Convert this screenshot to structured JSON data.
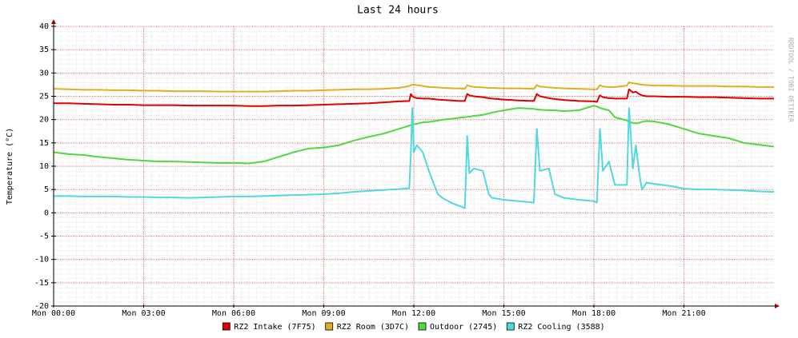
{
  "chart_data": {
    "type": "line",
    "title": "Last 24 hours",
    "y_label": "Temperature (°C)",
    "watermark": "RRDTOOL / TOBI OETIKER",
    "xlim": [
      0,
      24
    ],
    "xticks": [
      {
        "value": 0,
        "label": "Mon 00:00"
      },
      {
        "value": 3,
        "label": "Mon 03:00"
      },
      {
        "value": 6,
        "label": "Mon 06:00"
      },
      {
        "value": 9,
        "label": "Mon 09:00"
      },
      {
        "value": 12,
        "label": "Mon 12:00"
      },
      {
        "value": 15,
        "label": "Mon 15:00"
      },
      {
        "value": 18,
        "label": "Mon 18:00"
      },
      {
        "value": 21,
        "label": "Mon 21:00"
      }
    ],
    "ylim": [
      -20,
      40
    ],
    "yticks": [
      -20,
      -15,
      -10,
      -5,
      0,
      5,
      10,
      15,
      20,
      25,
      30,
      35,
      40
    ],
    "grid": true,
    "x": [
      0,
      0.5,
      1,
      1.5,
      2,
      2.5,
      3,
      3.5,
      4,
      4.5,
      5,
      5.5,
      6,
      6.5,
      7,
      7.5,
      8,
      8.5,
      9,
      9.5,
      10,
      10.5,
      11,
      11.5,
      11.85,
      11.9,
      11.95,
      12,
      12.1,
      12.3,
      12.5,
      12.8,
      13,
      13.3,
      13.5,
      13.7,
      13.78,
      13.85,
      14,
      14.3,
      14.5,
      14.6,
      15,
      15.5,
      16,
      16.1,
      16.2,
      16.5,
      16.7,
      17,
      17.5,
      18,
      18.1,
      18.2,
      18.3,
      18.5,
      18.7,
      19,
      19.1,
      19.17,
      19.3,
      19.4,
      19.5,
      19.6,
      19.75,
      20,
      20.5,
      21,
      21.5,
      22,
      22.5,
      23,
      23.5,
      24
    ],
    "series": [
      {
        "name": "RZ2 Intake (7F75)",
        "color": "#e00000",
        "values": [
          23.5,
          23.5,
          23.4,
          23.3,
          23.2,
          23.2,
          23.1,
          23.1,
          23.1,
          23,
          23,
          23,
          23,
          22.9,
          22.9,
          23,
          23,
          23.1,
          23.2,
          23.3,
          23.4,
          23.5,
          23.7,
          23.9,
          24,
          25.5,
          25,
          24.8,
          24.6,
          24.5,
          24.5,
          24.3,
          24.2,
          24.1,
          24,
          24,
          25.5,
          25.2,
          25,
          24.8,
          24.6,
          24.5,
          24.3,
          24.1,
          24,
          25.5,
          25,
          24.6,
          24.4,
          24.2,
          24,
          23.9,
          23.8,
          25.2,
          24.8,
          24.6,
          24.5,
          24.5,
          24.5,
          26.5,
          25.8,
          26,
          25.5,
          25.2,
          25,
          25,
          24.9,
          24.9,
          24.8,
          24.8,
          24.7,
          24.6,
          24.5,
          24.5
        ]
      },
      {
        "name": "RZ2 Room (3D7C)",
        "color": "#e0b020",
        "values": [
          26.6,
          26.5,
          26.4,
          26.4,
          26.3,
          26.3,
          26.2,
          26.2,
          26.1,
          26.1,
          26.1,
          26,
          26,
          26,
          26,
          26.1,
          26.2,
          26.2,
          26.3,
          26.4,
          26.5,
          26.5,
          26.6,
          26.8,
          27.2,
          27.4,
          27.5,
          27.5,
          27.4,
          27.2,
          27,
          26.9,
          26.8,
          26.7,
          26.7,
          26.6,
          27.4,
          27.2,
          27,
          26.9,
          26.8,
          26.8,
          26.7,
          26.7,
          26.6,
          27.4,
          27.1,
          26.9,
          26.8,
          26.7,
          26.6,
          26.5,
          26.5,
          27.4,
          27.1,
          27,
          27,
          27.2,
          27.3,
          28,
          27.8,
          27.7,
          27.6,
          27.5,
          27.4,
          27.3,
          27.3,
          27.2,
          27.2,
          27.2,
          27.1,
          27.1,
          27,
          27
        ]
      },
      {
        "name": "Outdoor (2745)",
        "color": "#50d840",
        "values": [
          13,
          12.6,
          12.4,
          12,
          11.7,
          11.4,
          11.2,
          11,
          11,
          10.9,
          10.8,
          10.7,
          10.7,
          10.6,
          11,
          12,
          13,
          13.8,
          14,
          14.5,
          15.5,
          16.3,
          17,
          18,
          18.7,
          18.8,
          18.9,
          19,
          19.1,
          19.4,
          19.5,
          19.8,
          20,
          20.2,
          20.4,
          20.5,
          20.6,
          20.6,
          20.8,
          21,
          21.3,
          21.5,
          22,
          22.5,
          22.3,
          22.2,
          22.1,
          22,
          22,
          21.8,
          22,
          23,
          22.8,
          22.5,
          22.3,
          22,
          20.5,
          20,
          19.8,
          19.5,
          19.3,
          19.2,
          19.3,
          19.5,
          19.7,
          19.6,
          19,
          18,
          17,
          16.5,
          16,
          15,
          14.6,
          14.2
        ]
      },
      {
        "name": "RZ2 Cooling (3588)",
        "color": "#50d8e0",
        "values": [
          3.6,
          3.6,
          3.5,
          3.5,
          3.5,
          3.4,
          3.4,
          3.3,
          3.3,
          3.2,
          3.3,
          3.4,
          3.5,
          3.5,
          3.6,
          3.7,
          3.8,
          3.9,
          4,
          4.2,
          4.5,
          4.7,
          4.9,
          5.1,
          5.3,
          12.5,
          22.5,
          13,
          14.5,
          13,
          9,
          4,
          3,
          2,
          1.5,
          1,
          16.5,
          8.5,
          9.5,
          9,
          4,
          3.2,
          2.8,
          2.5,
          2.2,
          18,
          9,
          9.5,
          4,
          3.2,
          2.8,
          2.5,
          2.2,
          18,
          9,
          11,
          6,
          6,
          6,
          22.5,
          9.5,
          14.5,
          9,
          5,
          6.5,
          6.2,
          5.8,
          5.2,
          5,
          5,
          4.9,
          4.8,
          4.6,
          4.5
        ]
      }
    ]
  }
}
